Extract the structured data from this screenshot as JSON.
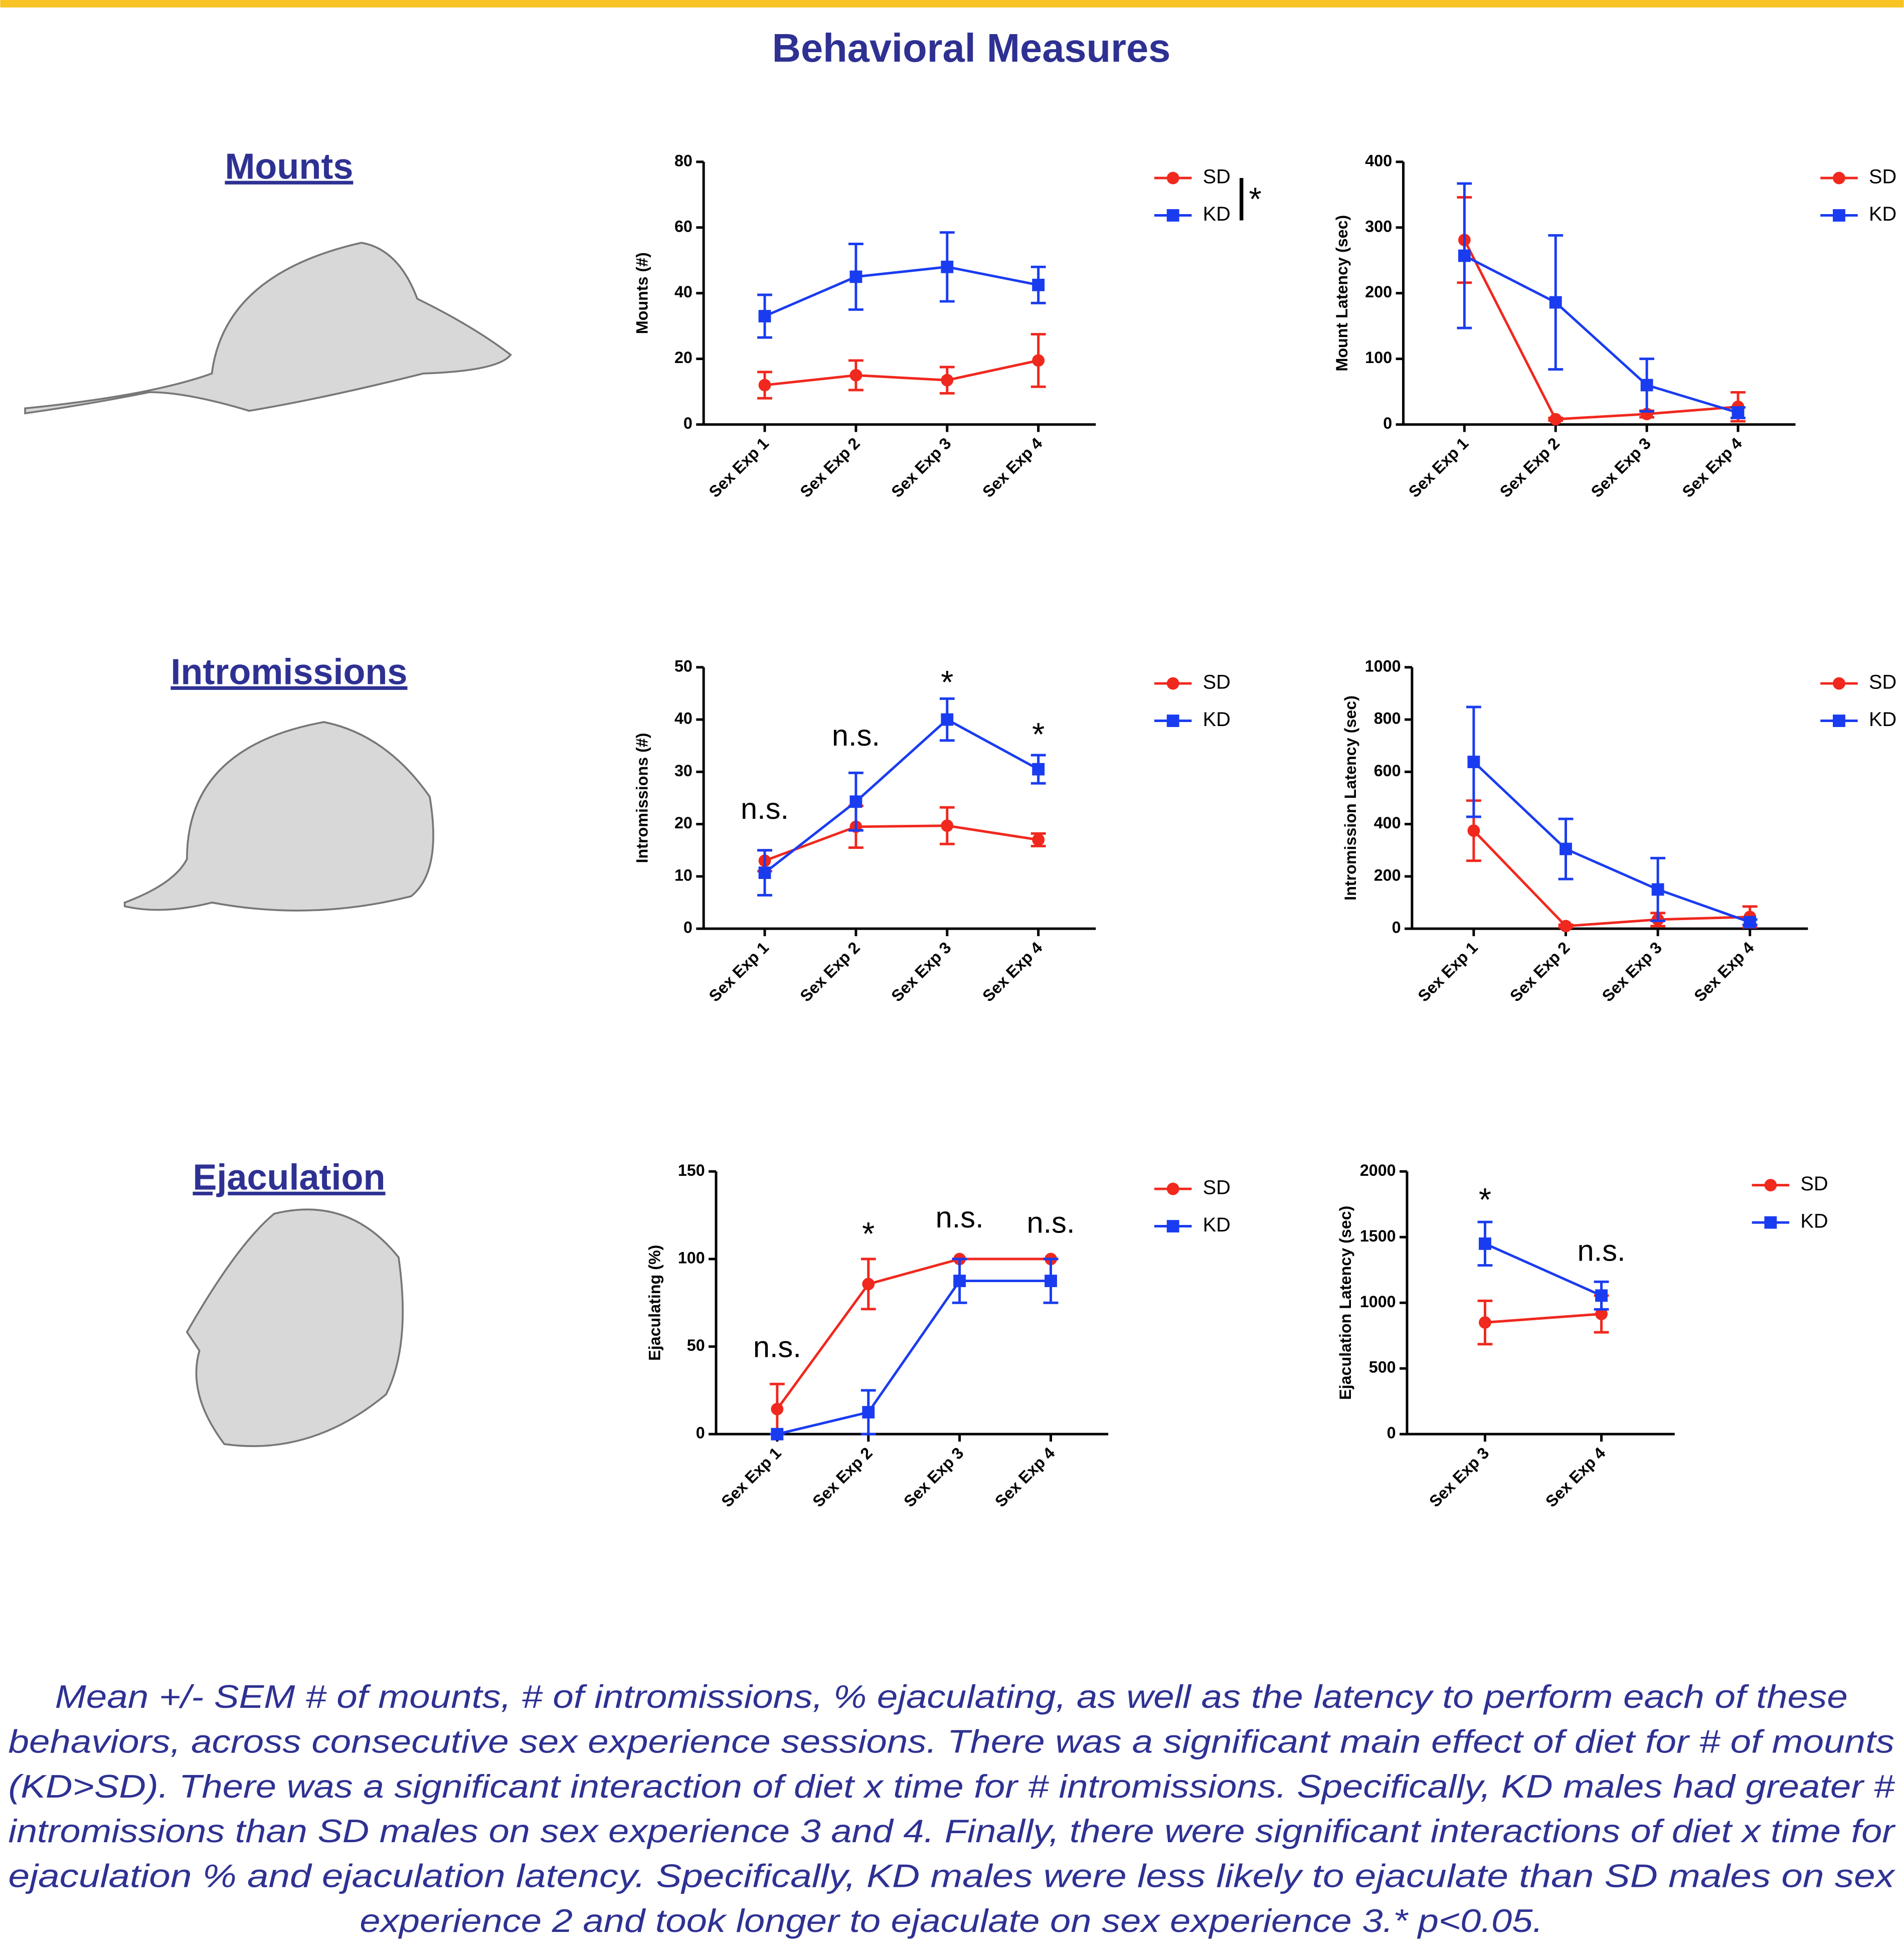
{
  "header": {
    "title": "Behavioral Measures"
  },
  "sections": [
    "Mounts",
    "Intromissions",
    "Ejaculation"
  ],
  "caption": [
    "Mean +/- SEM # of mounts, # of intromissions, % ejaculating, as well as the latency to perform each of these",
    "behaviors, across consecutive sex experience sessions. There was a significant main effect of diet for # of mounts",
    "(KD>SD). There was a significant interaction of diet x time for # intromissions. Specifically, KD males had greater #",
    "intromissions than SD males on sex experience 3 and 4. Finally, there were significant interactions of diet x time for",
    "ejaculation % and ejaculation latency. Specifically, KD males were less likely to ejaculate than SD males on sex",
    "experience 2 and took longer to ejaculate on sex experience 3.* p<0.05."
  ],
  "chart_data": [
    {
      "type": "line",
      "ylabel": "Mounts (#)",
      "categories": [
        "Sex Exp 1",
        "Sex Exp 2",
        "Sex Exp 3",
        "Sex Exp 4"
      ],
      "ylim": [
        0,
        80
      ],
      "yticks": [
        0,
        20,
        40,
        60,
        80
      ],
      "legend_note": "*",
      "series": [
        {
          "name": "SD",
          "color": "#f0281e",
          "marker": "circle",
          "values": [
            12,
            15,
            13.5,
            19.5
          ],
          "errors": [
            4,
            4.5,
            4,
            8
          ]
        },
        {
          "name": "KD",
          "color": "#1a3cf0",
          "marker": "square",
          "values": [
            33,
            45,
            48,
            42.5
          ],
          "errors": [
            6.5,
            10,
            10.5,
            5.5
          ]
        }
      ],
      "annotations": []
    },
    {
      "type": "line",
      "ylabel": "Mount Latency (sec)",
      "categories": [
        "Sex Exp 1",
        "Sex Exp 2",
        "Sex Exp 3",
        "Sex Exp 4"
      ],
      "ylim": [
        0,
        400
      ],
      "yticks": [
        0,
        100,
        200,
        300,
        400
      ],
      "series": [
        {
          "name": "SD",
          "color": "#f0281e",
          "marker": "circle",
          "values": [
            281,
            8,
            16,
            27
          ],
          "errors": [
            65,
            2,
            5,
            22
          ]
        },
        {
          "name": "KD",
          "color": "#1a3cf0",
          "marker": "square",
          "values": [
            257,
            186,
            60,
            18
          ],
          "errors": [
            110,
            102,
            40,
            8
          ]
        }
      ],
      "annotations": []
    },
    {
      "type": "line",
      "ylabel": "Intromissions (#)",
      "categories": [
        "Sex Exp 1",
        "Sex Exp 2",
        "Sex Exp 3",
        "Sex Exp 4"
      ],
      "ylim": [
        0,
        50
      ],
      "yticks": [
        0,
        10,
        20,
        30,
        40,
        50
      ],
      "series": [
        {
          "name": "SD",
          "color": "#f0281e",
          "marker": "circle",
          "values": [
            13,
            19.5,
            19.7,
            17
          ],
          "errors": [
            2,
            4,
            3.5,
            1.2
          ]
        },
        {
          "name": "KD",
          "color": "#1a3cf0",
          "marker": "square",
          "values": [
            10.7,
            24.3,
            40,
            30.5
          ],
          "errors": [
            4.3,
            5.5,
            4,
            2.7
          ]
        }
      ],
      "annotations": [
        {
          "text": "n.s.",
          "at": 0,
          "y": 21
        },
        {
          "text": "n.s.",
          "at": 1,
          "y": 35
        },
        {
          "text": "*",
          "at": 2,
          "y": 45
        },
        {
          "text": "*",
          "at": 3,
          "y": 35
        }
      ]
    },
    {
      "type": "line",
      "ylabel": "Intromission Latency (sec)",
      "categories": [
        "Sex Exp 1",
        "Sex Exp 2",
        "Sex Exp 3",
        "Sex Exp 4"
      ],
      "ylim": [
        0,
        1000
      ],
      "yticks": [
        0,
        200,
        400,
        600,
        800,
        1000
      ],
      "series": [
        {
          "name": "SD",
          "color": "#f0281e",
          "marker": "circle",
          "values": [
            375,
            10,
            35,
            45
          ],
          "errors": [
            115,
            5,
            25,
            40
          ]
        },
        {
          "name": "KD",
          "color": "#1a3cf0",
          "marker": "square",
          "values": [
            638,
            305,
            150,
            25
          ],
          "errors": [
            210,
            115,
            120,
            10
          ]
        }
      ],
      "annotations": []
    },
    {
      "type": "line",
      "ylabel": "Ejaculating (%)",
      "categories": [
        "Sex Exp 1",
        "Sex Exp 2",
        "Sex Exp 3",
        "Sex Exp 4"
      ],
      "ylim": [
        0,
        150
      ],
      "yticks": [
        0,
        50,
        100,
        150
      ],
      "series": [
        {
          "name": "SD",
          "color": "#f0281e",
          "marker": "circle",
          "values": [
            14.3,
            85.7,
            100,
            100
          ],
          "errors": [
            14.3,
            14.3,
            0,
            0
          ]
        },
        {
          "name": "KD",
          "color": "#1a3cf0",
          "marker": "square",
          "values": [
            0,
            12.5,
            87.5,
            87.5
          ],
          "errors": [
            0,
            12.5,
            12.5,
            12.5
          ]
        }
      ],
      "annotations": [
        {
          "text": "n.s.",
          "at": 0,
          "y": 44
        },
        {
          "text": "*",
          "at": 1,
          "y": 108
        },
        {
          "text": "n.s.",
          "at": 2,
          "y": 118
        },
        {
          "text": "n.s.",
          "at": 3,
          "y": 115
        }
      ]
    },
    {
      "type": "line",
      "ylabel": "Ejaculation Latency (sec)",
      "categories": [
        "Sex Exp 3",
        "Sex Exp 4"
      ],
      "ylim": [
        0,
        2000
      ],
      "yticks": [
        0,
        500,
        1000,
        1500,
        2000
      ],
      "series": [
        {
          "name": "SD",
          "color": "#f0281e",
          "marker": "circle",
          "values": [
            850,
            915
          ],
          "errors": [
            165,
            140
          ]
        },
        {
          "name": "KD",
          "color": "#1a3cf0",
          "marker": "square",
          "values": [
            1450,
            1055
          ],
          "errors": [
            165,
            105
          ]
        }
      ],
      "annotations": [
        {
          "text": "*",
          "at": 0,
          "y": 1700
        },
        {
          "text": "n.s.",
          "at": 1,
          "y": 1320
        }
      ]
    }
  ]
}
